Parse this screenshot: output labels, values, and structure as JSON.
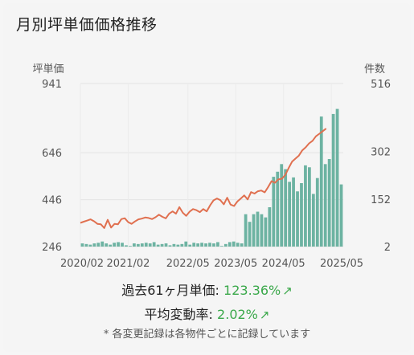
{
  "header": {
    "title": "月別坪単価価格推移"
  },
  "chart_data": {
    "type": "bar+line",
    "left_axis_label": "坪単価",
    "right_axis_label": "件数",
    "left_ticks": [
      246,
      446,
      646,
      941
    ],
    "right_ticks": [
      2,
      152,
      302,
      516
    ],
    "ylim_left": [
      246,
      941
    ],
    "ylim_right": [
      2,
      516
    ],
    "x_tick_labels": [
      "2020/02",
      "2021/02",
      "2022/05",
      "2023/05",
      "2024/05",
      "2025/05"
    ],
    "x_tick_months": [
      0,
      12,
      27,
      39,
      51,
      63
    ],
    "grid": true,
    "series": [
      {
        "type": "bar",
        "axis": "right",
        "color": "#6db3a2",
        "values": [
          12,
          10,
          8,
          12,
          14,
          18,
          12,
          8,
          14,
          16,
          14,
          6,
          4,
          12,
          10,
          12,
          14,
          12,
          16,
          8,
          10,
          12,
          6,
          10,
          8,
          10,
          18,
          8,
          14,
          12,
          14,
          12,
          14,
          12,
          16,
          4,
          10,
          16,
          18,
          14,
          12,
          104,
          80,
          104,
          112,
          104,
          94,
          126,
          222,
          238,
          262,
          246,
          206,
          220,
          176,
          202,
          258,
          252,
          168,
          218,
          412,
          262,
          278,
          420,
          436,
          198
        ],
        "months_start": 0
      },
      {
        "type": "line",
        "axis": "left",
        "color": "#e07050",
        "values": [
          347,
          352,
          357,
          362,
          354,
          343,
          341,
          325,
          360,
          327,
          343,
          341,
          363,
          367,
          350,
          343,
          353,
          362,
          365,
          370,
          368,
          363,
          371,
          382,
          373,
          366,
          386,
          396,
          386,
          414,
          390,
          377,
          395,
          406,
          401,
          393,
          406,
          396,
          422,
          443,
          451,
          444,
          426,
          454,
          425,
          419,
          438,
          451,
          464,
          447,
          478,
          472,
          482,
          485,
          477,
          500,
          525,
          518,
          533,
          535,
          551,
          580,
          608,
          621,
          634,
          656,
          669,
          686,
          697,
          716,
          727,
          738,
          749
        ],
        "months_start": 0
      }
    ]
  },
  "stats": {
    "rate_label": "過去61ヶ月単価:",
    "rate_value": "123.36%",
    "avg_label": "平均変動率:",
    "avg_value": "2.02%",
    "trend_icon": "trend-up-icon"
  },
  "footnote": "* 各変更記録は各物件ごとに記録しています"
}
